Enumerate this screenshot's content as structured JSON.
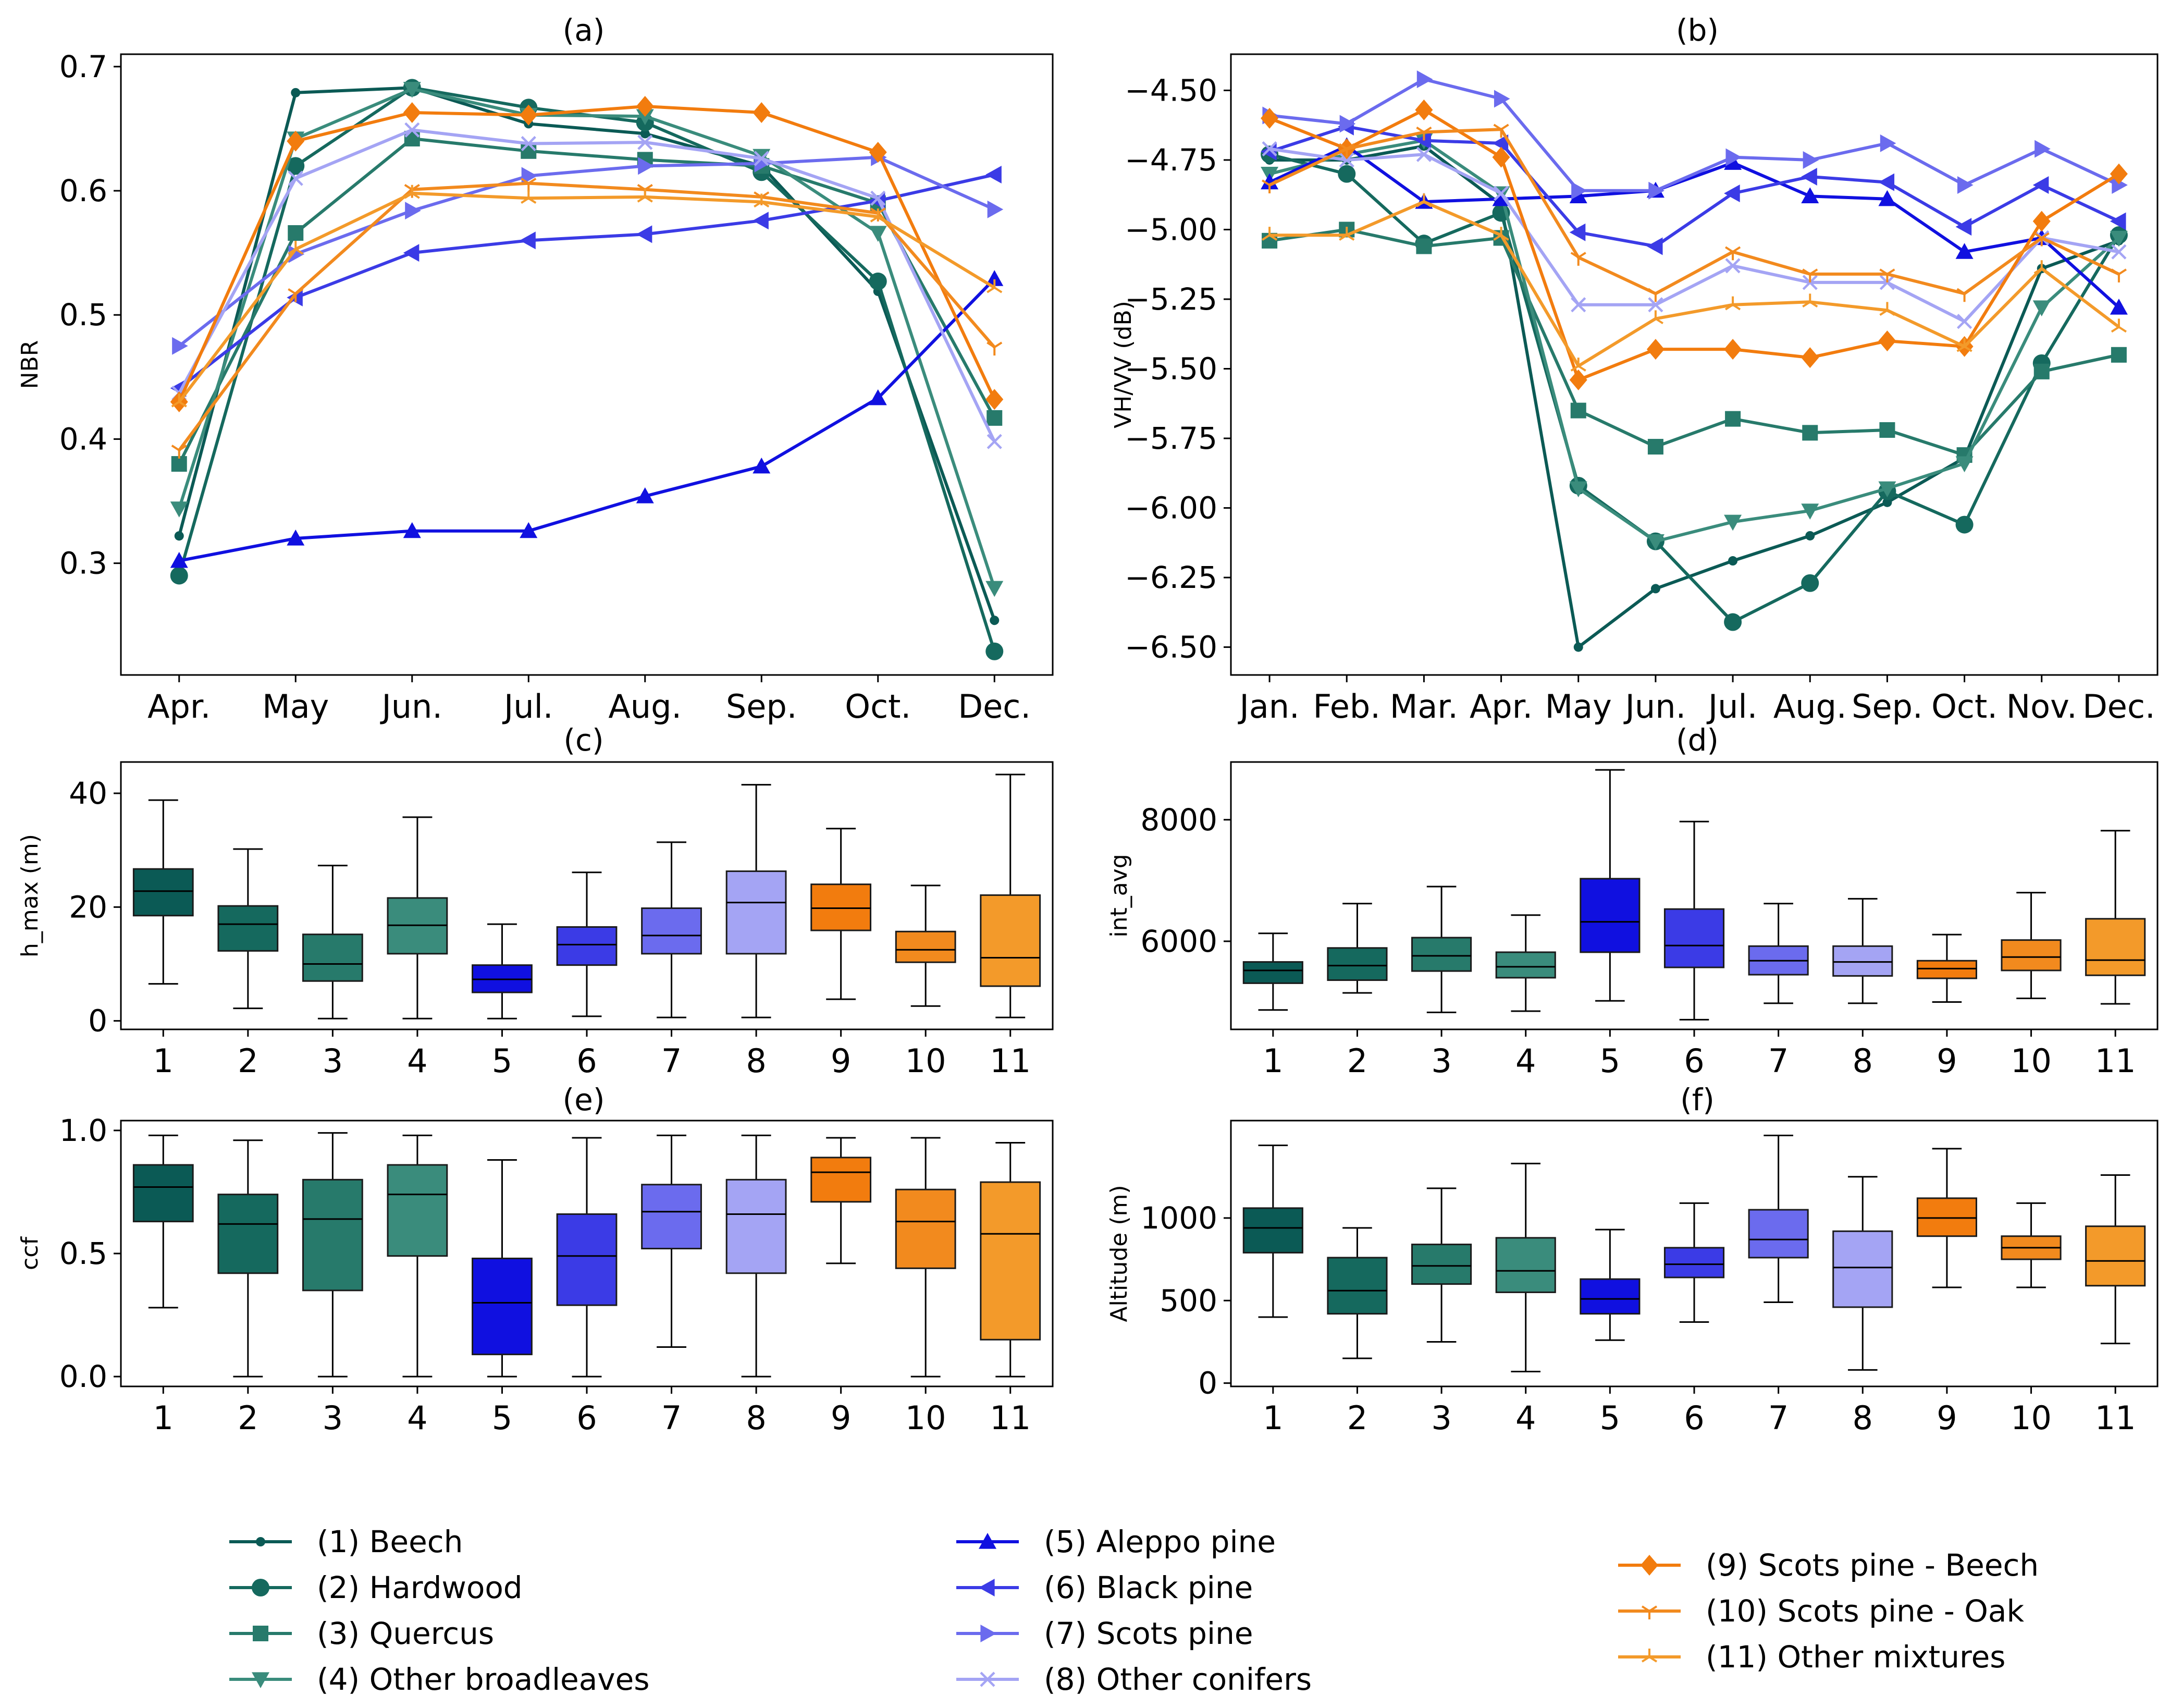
{
  "figure": {
    "legend": [
      {
        "label": "(1) Beech",
        "color": "#0b5a55",
        "marker": "point"
      },
      {
        "label": "(2) Hardwood",
        "color": "#15695e",
        "marker": "circle"
      },
      {
        "label": "(3) Quercus",
        "color": "#277a6b",
        "marker": "square"
      },
      {
        "label": "(4) Other broadleaves",
        "color": "#3a8c7c",
        "marker": "triangle-down"
      },
      {
        "label": "(5) Aleppo pine",
        "color": "#1010e0",
        "marker": "triangle-up"
      },
      {
        "label": "(6) Black pine",
        "color": "#3b3be6",
        "marker": "triangle-left"
      },
      {
        "label": "(7) Scots pine",
        "color": "#6b6bee",
        "marker": "triangle-right"
      },
      {
        "label": "(8) Other conifers",
        "color": "#a4a4f4",
        "marker": "x"
      },
      {
        "label": "(9) Scots pine - Beech",
        "color": "#f27c0e",
        "marker": "diamond"
      },
      {
        "label": "(10) Scots pine - Oak",
        "color": "#f28a1e",
        "marker": "tri-down"
      },
      {
        "label": "(11) Other mixtures",
        "color": "#f39a2a",
        "marker": "tri-up"
      }
    ]
  },
  "chart_data": [
    {
      "id": "a",
      "panel_label": "(a)",
      "type": "line",
      "ylabel": "NBR",
      "xlabel": "",
      "x": [
        "Apr.",
        "May",
        "Jun.",
        "Jul.",
        "Aug.",
        "Sep.",
        "Oct.",
        "Dec."
      ],
      "ylim": [
        0.21,
        0.71
      ],
      "yticks": [
        0.3,
        0.4,
        0.5,
        0.6,
        0.7
      ],
      "ytick_labels": [
        "0.3",
        "0.4",
        "0.5",
        "0.6",
        "0.7"
      ],
      "series": [
        {
          "name": "(1) Beech",
          "values": [
            0.322,
            0.679,
            0.683,
            0.654,
            0.646,
            0.62,
            0.519,
            0.254
          ]
        },
        {
          "name": "(2) Hardwood",
          "values": [
            0.29,
            0.62,
            0.683,
            0.667,
            0.655,
            0.615,
            0.527,
            0.229
          ]
        },
        {
          "name": "(3) Quercus",
          "values": [
            0.38,
            0.566,
            0.642,
            0.632,
            0.625,
            0.62,
            0.59,
            0.417
          ]
        },
        {
          "name": "(4) Other broadleaves",
          "values": [
            0.344,
            0.642,
            0.682,
            0.661,
            0.66,
            0.628,
            0.566,
            0.28
          ]
        },
        {
          "name": "(5) Aleppo pine",
          "values": [
            0.302,
            0.32,
            0.326,
            0.326,
            0.354,
            0.378,
            0.433,
            0.529
          ]
        },
        {
          "name": "(6) Black pine",
          "values": [
            0.441,
            0.514,
            0.55,
            0.56,
            0.565,
            0.576,
            0.592,
            0.613
          ]
        },
        {
          "name": "(7) Scots pine",
          "values": [
            0.475,
            0.549,
            0.584,
            0.612,
            0.62,
            0.622,
            0.627,
            0.585
          ]
        },
        {
          "name": "(8) Other conifers",
          "values": [
            0.437,
            0.61,
            0.649,
            0.638,
            0.639,
            0.626,
            0.594,
            0.398
          ]
        },
        {
          "name": "(9) Scots pine - Beech",
          "values": [
            0.43,
            0.64,
            0.663,
            0.661,
            0.668,
            0.663,
            0.631,
            0.432
          ]
        },
        {
          "name": "(10) Scots pine - Oak",
          "values": [
            0.391,
            0.517,
            0.601,
            0.606,
            0.601,
            0.595,
            0.582,
            0.474
          ]
        },
        {
          "name": "(11) Other mixtures",
          "values": [
            0.43,
            0.553,
            0.598,
            0.594,
            0.595,
            0.591,
            0.579,
            0.522
          ]
        }
      ]
    },
    {
      "id": "b",
      "panel_label": "(b)",
      "type": "line",
      "ylabel": "VH/VV (dB)",
      "xlabel": "",
      "x": [
        "Jan.",
        "Feb.",
        "Mar.",
        "Apr.",
        "May",
        "Jun.",
        "Jul.",
        "Aug.",
        "Sep.",
        "Oct.",
        "Nov.",
        "Dec."
      ],
      "ylim": [
        -6.6,
        -4.37
      ],
      "yticks": [
        -6.5,
        -6.25,
        -6.0,
        -5.75,
        -5.5,
        -5.25,
        -5.0,
        -4.75,
        -4.5
      ],
      "ytick_labels": [
        "−6.50",
        "−6.25",
        "−6.00",
        "−5.75",
        "−5.50",
        "−5.25",
        "−5.00",
        "−4.75",
        "−4.50"
      ],
      "series": [
        {
          "name": "(1) Beech",
          "values": [
            -4.75,
            -4.75,
            -4.7,
            -4.91,
            -6.5,
            -6.29,
            -6.19,
            -6.1,
            -5.98,
            -5.82,
            -5.14,
            -5.04
          ]
        },
        {
          "name": "(2) Hardwood",
          "values": [
            -4.73,
            -4.8,
            -5.05,
            -4.94,
            -5.92,
            -6.12,
            -6.41,
            -6.27,
            -5.94,
            -6.06,
            -5.48,
            -5.02
          ]
        },
        {
          "name": "(3) Quercus",
          "values": [
            -5.04,
            -5.0,
            -5.06,
            -5.03,
            -5.65,
            -5.78,
            -5.68,
            -5.73,
            -5.72,
            -5.81,
            -5.51,
            -5.45
          ]
        },
        {
          "name": "(4) Other broadleaves",
          "values": [
            -4.8,
            -4.73,
            -4.68,
            -4.87,
            -5.93,
            -6.12,
            -6.05,
            -6.01,
            -5.93,
            -5.84,
            -5.28,
            -5.03
          ]
        },
        {
          "name": "(5) Aleppo pine",
          "values": [
            -4.83,
            -4.7,
            -4.9,
            -4.89,
            -4.88,
            -4.86,
            -4.76,
            -4.88,
            -4.89,
            -5.08,
            -5.03,
            -5.28
          ]
        },
        {
          "name": "(6) Black pine",
          "values": [
            -4.72,
            -4.63,
            -4.68,
            -4.69,
            -5.01,
            -5.06,
            -4.87,
            -4.81,
            -4.83,
            -4.99,
            -4.84,
            -4.97
          ]
        },
        {
          "name": "(7) Scots pine",
          "values": [
            -4.59,
            -4.62,
            -4.46,
            -4.53,
            -4.86,
            -4.86,
            -4.74,
            -4.75,
            -4.69,
            -4.84,
            -4.71,
            -4.84
          ]
        },
        {
          "name": "(8) Other conifers",
          "values": [
            -4.71,
            -4.75,
            -4.73,
            -4.87,
            -5.27,
            -5.27,
            -5.13,
            -5.19,
            -5.19,
            -5.33,
            -5.03,
            -5.08
          ]
        },
        {
          "name": "(9) Scots pine - Beech",
          "values": [
            -4.6,
            -4.71,
            -4.57,
            -4.74,
            -5.54,
            -5.43,
            -5.43,
            -5.46,
            -5.4,
            -5.42,
            -4.97,
            -4.8
          ]
        },
        {
          "name": "(10) Scots pine - Oak",
          "values": [
            -4.84,
            -4.71,
            -4.65,
            -4.64,
            -5.1,
            -5.23,
            -5.08,
            -5.16,
            -5.16,
            -5.23,
            -5.03,
            -5.16
          ]
        },
        {
          "name": "(11) Other mixtures",
          "values": [
            -5.02,
            -5.02,
            -4.9,
            -5.02,
            -5.49,
            -5.32,
            -5.27,
            -5.26,
            -5.29,
            -5.42,
            -5.14,
            -5.35
          ]
        }
      ]
    },
    {
      "id": "c",
      "panel_label": "(c)",
      "type": "box",
      "ylabel": "h_max (m)",
      "xlabel": "",
      "categories": [
        "1",
        "2",
        "3",
        "4",
        "5",
        "6",
        "7",
        "8",
        "9",
        "10",
        "11"
      ],
      "ylim": [
        -1.5,
        45.5
      ],
      "yticks": [
        0,
        20,
        40
      ],
      "ytick_labels": [
        "0",
        "20",
        "40"
      ],
      "boxes": [
        {
          "whislo": 6.5,
          "q1": 18.5,
          "med": 22.8,
          "q3": 26.7,
          "whishi": 38.8
        },
        {
          "whislo": 2.2,
          "q1": 12.3,
          "med": 17.0,
          "q3": 20.2,
          "whishi": 30.2
        },
        {
          "whislo": 0.4,
          "q1": 7.0,
          "med": 10.0,
          "q3": 15.2,
          "whishi": 27.3
        },
        {
          "whislo": 0.4,
          "q1": 11.8,
          "med": 16.8,
          "q3": 21.6,
          "whishi": 35.8
        },
        {
          "whislo": 0.4,
          "q1": 5.0,
          "med": 7.3,
          "q3": 9.8,
          "whishi": 17.0
        },
        {
          "whislo": 0.8,
          "q1": 9.8,
          "med": 13.4,
          "q3": 16.5,
          "whishi": 26.1
        },
        {
          "whislo": 0.6,
          "q1": 11.8,
          "med": 15.0,
          "q3": 19.8,
          "whishi": 31.4
        },
        {
          "whislo": 0.6,
          "q1": 11.8,
          "med": 20.8,
          "q3": 26.3,
          "whishi": 41.5
        },
        {
          "whislo": 3.8,
          "q1": 15.9,
          "med": 19.8,
          "q3": 24.0,
          "whishi": 33.8
        },
        {
          "whislo": 2.6,
          "q1": 10.3,
          "med": 12.5,
          "q3": 15.7,
          "whishi": 23.8
        },
        {
          "whislo": 0.6,
          "q1": 6.1,
          "med": 11.1,
          "q3": 22.1,
          "whishi": 43.3
        }
      ]
    },
    {
      "id": "d",
      "panel_label": "(d)",
      "type": "box",
      "ylabel": "int_avg",
      "xlabel": "",
      "categories": [
        "1",
        "2",
        "3",
        "4",
        "5",
        "6",
        "7",
        "8",
        "9",
        "10",
        "11"
      ],
      "ylim": [
        4550,
        8950
      ],
      "yticks": [
        6000,
        8000
      ],
      "ytick_labels": [
        "6000",
        "8000"
      ],
      "boxes": [
        {
          "whislo": 4870,
          "q1": 5310,
          "med": 5520,
          "q3": 5660,
          "whishi": 6130
        },
        {
          "whislo": 5150,
          "q1": 5360,
          "med": 5600,
          "q3": 5890,
          "whishi": 6620
        },
        {
          "whislo": 4830,
          "q1": 5510,
          "med": 5760,
          "q3": 6060,
          "whishi": 6900
        },
        {
          "whislo": 4850,
          "q1": 5400,
          "med": 5580,
          "q3": 5820,
          "whishi": 6430
        },
        {
          "whislo": 5020,
          "q1": 5820,
          "med": 6320,
          "q3": 7030,
          "whishi": 8820
        },
        {
          "whislo": 4710,
          "q1": 5570,
          "med": 5930,
          "q3": 6530,
          "whishi": 7970
        },
        {
          "whislo": 4980,
          "q1": 5450,
          "med": 5680,
          "q3": 5920,
          "whishi": 6620
        },
        {
          "whislo": 4980,
          "q1": 5430,
          "med": 5660,
          "q3": 5920,
          "whishi": 6700
        },
        {
          "whislo": 5000,
          "q1": 5390,
          "med": 5550,
          "q3": 5680,
          "whishi": 6110
        },
        {
          "whislo": 5060,
          "q1": 5520,
          "med": 5740,
          "q3": 6020,
          "whishi": 6800
        },
        {
          "whislo": 4970,
          "q1": 5440,
          "med": 5690,
          "q3": 6370,
          "whishi": 7820
        }
      ]
    },
    {
      "id": "e",
      "panel_label": "(e)",
      "type": "box",
      "ylabel": "ccf",
      "xlabel": "",
      "categories": [
        "1",
        "2",
        "3",
        "4",
        "5",
        "6",
        "7",
        "8",
        "9",
        "10",
        "11"
      ],
      "ylim": [
        -0.04,
        1.04
      ],
      "yticks": [
        0.0,
        0.5,
        1.0
      ],
      "ytick_labels": [
        "0.0",
        "0.5",
        "1.0"
      ],
      "boxes": [
        {
          "whislo": 0.28,
          "q1": 0.63,
          "med": 0.77,
          "q3": 0.86,
          "whishi": 0.98
        },
        {
          "whislo": 0.0,
          "q1": 0.42,
          "med": 0.62,
          "q3": 0.74,
          "whishi": 0.96
        },
        {
          "whislo": 0.0,
          "q1": 0.35,
          "med": 0.64,
          "q3": 0.8,
          "whishi": 0.99
        },
        {
          "whislo": 0.0,
          "q1": 0.49,
          "med": 0.74,
          "q3": 0.86,
          "whishi": 0.98
        },
        {
          "whislo": 0.0,
          "q1": 0.09,
          "med": 0.3,
          "q3": 0.48,
          "whishi": 0.88
        },
        {
          "whislo": 0.0,
          "q1": 0.29,
          "med": 0.49,
          "q3": 0.66,
          "whishi": 0.97
        },
        {
          "whislo": 0.12,
          "q1": 0.52,
          "med": 0.67,
          "q3": 0.78,
          "whishi": 0.98
        },
        {
          "whislo": 0.0,
          "q1": 0.42,
          "med": 0.66,
          "q3": 0.8,
          "whishi": 0.98
        },
        {
          "whislo": 0.46,
          "q1": 0.71,
          "med": 0.83,
          "q3": 0.89,
          "whishi": 0.97
        },
        {
          "whislo": 0.0,
          "q1": 0.44,
          "med": 0.63,
          "q3": 0.76,
          "whishi": 0.97
        },
        {
          "whislo": 0.0,
          "q1": 0.15,
          "med": 0.58,
          "q3": 0.79,
          "whishi": 0.95
        }
      ]
    },
    {
      "id": "f",
      "panel_label": "(f)",
      "type": "box",
      "ylabel": "Altitude (m)",
      "xlabel": "",
      "categories": [
        "1",
        "2",
        "3",
        "4",
        "5",
        "6",
        "7",
        "8",
        "9",
        "10",
        "11"
      ],
      "ylim": [
        -20,
        1590
      ],
      "yticks": [
        0,
        500,
        1000
      ],
      "ytick_labels": [
        "0",
        "500",
        "1000"
      ],
      "boxes": [
        {
          "whislo": 400,
          "q1": 790,
          "med": 940,
          "q3": 1060,
          "whishi": 1440
        },
        {
          "whislo": 150,
          "q1": 420,
          "med": 560,
          "q3": 760,
          "whishi": 940
        },
        {
          "whislo": 250,
          "q1": 600,
          "med": 710,
          "q3": 840,
          "whishi": 1180
        },
        {
          "whislo": 70,
          "q1": 550,
          "med": 680,
          "q3": 880,
          "whishi": 1330
        },
        {
          "whislo": 260,
          "q1": 420,
          "med": 510,
          "q3": 630,
          "whishi": 930
        },
        {
          "whislo": 370,
          "q1": 640,
          "med": 720,
          "q3": 820,
          "whishi": 1090
        },
        {
          "whislo": 490,
          "q1": 760,
          "med": 870,
          "q3": 1050,
          "whishi": 1500
        },
        {
          "whislo": 80,
          "q1": 460,
          "med": 700,
          "q3": 920,
          "whishi": 1250
        },
        {
          "whislo": 580,
          "q1": 890,
          "med": 1000,
          "q3": 1120,
          "whishi": 1420
        },
        {
          "whislo": 580,
          "q1": 750,
          "med": 820,
          "q3": 890,
          "whishi": 1090
        },
        {
          "whislo": 240,
          "q1": 590,
          "med": 740,
          "q3": 950,
          "whishi": 1260
        }
      ]
    }
  ]
}
